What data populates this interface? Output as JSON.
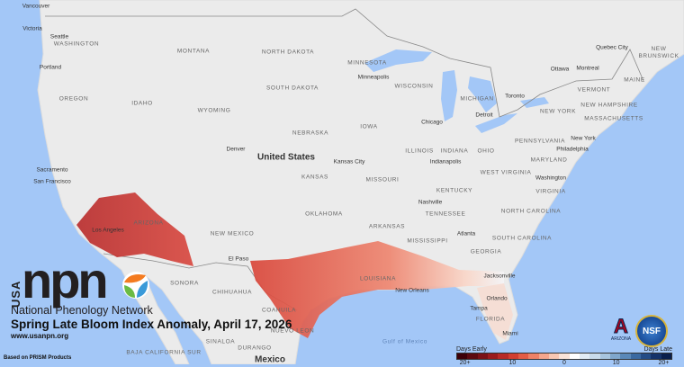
{
  "map": {
    "title": "Spring Late Bloom Index Anomaly, April 17, 2026",
    "url": "www.usanpn.org",
    "credit": "Based on PRISM Products",
    "logo": {
      "usa": "USA",
      "npn": "npn",
      "subtitle": "National Phenology Network"
    },
    "partner_logos": [
      {
        "name": "arizona-logo",
        "text": "ARIZONA"
      },
      {
        "name": "nsf-logo",
        "text": "NSF"
      }
    ],
    "countries": [
      "United States",
      "Mexico"
    ],
    "states": [
      "WASHINGTON",
      "OREGON",
      "IDAHO",
      "MONTANA",
      "WYOMING",
      "NORTH DAKOTA",
      "SOUTH DAKOTA",
      "NEBRASKA",
      "KANSAS",
      "OKLAHOMA",
      "NEW MEXICO",
      "ARIZONA",
      "MINNESOTA",
      "WISCONSIN",
      "IOWA",
      "MISSOURI",
      "ARKANSAS",
      "MISSISSIPPI",
      "ILLINOIS",
      "INDIANA",
      "OHIO",
      "MICHIGAN",
      "KENTUCKY",
      "TENNESSEE",
      "GEORGIA",
      "SOUTH CAROLINA",
      "NORTH CAROLINA",
      "VIRGINIA",
      "WEST VIRGINIA",
      "PENNSYLVANIA",
      "NEW YORK",
      "MAINE",
      "VERMONT",
      "NEW HAMPSHIRE",
      "MASSACHUSETTS",
      "MARYLAND",
      "FLORIDA",
      "LOUISIANA",
      "SONORA",
      "CHIHUAHUA",
      "COAHUILA",
      "NUEVO LEON",
      "SINALOA",
      "DURANGO",
      "BAJA CALIFORNIA SUR",
      "NEW BRUNSWICK"
    ],
    "cities": [
      "Vancouver",
      "Victoria",
      "Seattle",
      "Portland",
      "Sacramento",
      "San Francisco",
      "Los Angeles",
      "Denver",
      "Minneapolis",
      "Chicago",
      "Detroit",
      "Toronto",
      "Ottawa",
      "Montreal",
      "Quebec City",
      "New York",
      "Philadelphia",
      "Washington",
      "Kansas City",
      "Indianapolis",
      "Nashville",
      "Atlanta",
      "El Paso",
      "Jacksonville",
      "Orlando",
      "Tampa",
      "Miami",
      "New Orleans"
    ],
    "water": [
      "Gulf of Mexico"
    ]
  },
  "legend": {
    "left_label": "Days Early",
    "right_label": "Days Late",
    "ticks": [
      "20+",
      "10",
      "0",
      "10",
      "20+"
    ],
    "colors": [
      "#3d0008",
      "#5c0a10",
      "#7a1116",
      "#9a1b1d",
      "#b82a26",
      "#d23e30",
      "#e35c45",
      "#ee8166",
      "#f5a68c",
      "#f8c7b2",
      "#fae3d8",
      "#ffffff",
      "#e2ecf5",
      "#c9dbeb",
      "#a7c4de",
      "#80a7cc",
      "#5a88b8",
      "#3a69a1",
      "#244c86",
      "#15336a",
      "#0a1f4c"
    ]
  }
}
